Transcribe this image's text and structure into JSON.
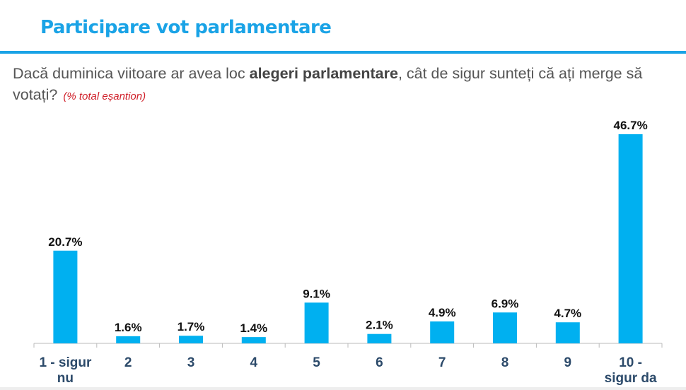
{
  "header": {
    "title": "Participare vot parlamentare",
    "question_pre": "Dacă duminica viitoare ar avea loc ",
    "question_bold": "alegeri parlamentare",
    "question_post": ", cât de sigur sunteți că ați merge să votați?",
    "note": "(% total eșantion)"
  },
  "colors": {
    "accent": "#1aa3e6",
    "bar": "#00b0f0",
    "axis_label": "#2c4a6a",
    "note": "#d0202a"
  },
  "chart_data": {
    "type": "bar",
    "title": "Participare vot parlamentare",
    "categories": [
      [
        "1 - sigur",
        "nu"
      ],
      [
        "2"
      ],
      [
        "3"
      ],
      [
        "4"
      ],
      [
        "5"
      ],
      [
        "6"
      ],
      [
        "7"
      ],
      [
        "8"
      ],
      [
        "9"
      ],
      [
        "10 -",
        "sigur da"
      ]
    ],
    "values": [
      20.7,
      1.6,
      1.7,
      1.4,
      9.1,
      2.1,
      4.9,
      6.9,
      4.7,
      46.7
    ],
    "data_labels": [
      "20.7%",
      "1.6%",
      "1.7%",
      "1.4%",
      "9.1%",
      "2.1%",
      "4.9%",
      "6.9%",
      "4.7%",
      "46.7%"
    ],
    "xlabel": "",
    "ylabel": "",
    "ylim": [
      0,
      50
    ],
    "grid": false,
    "legend": "none"
  }
}
